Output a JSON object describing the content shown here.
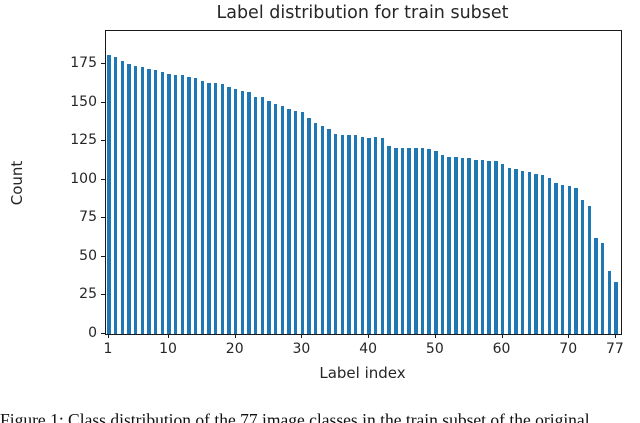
{
  "figure": {
    "title": "Label distribution for train subset",
    "xlabel": "Label index",
    "ylabel": "Count",
    "caption": "Figure 1: Class distribution of the 77 image classes in the train subset of the original"
  },
  "chart_data": {
    "type": "bar",
    "title": "Label distribution for train subset",
    "xlabel": "Label index",
    "ylabel": "Count",
    "bar_color": "#1f77b4",
    "grid": false,
    "legend": "none",
    "xticks": [
      1,
      10,
      20,
      30,
      40,
      50,
      60,
      70,
      77
    ],
    "yticks": [
      0,
      25,
      50,
      75,
      100,
      125,
      150,
      175
    ],
    "xlim": [
      0.5,
      78.6
    ],
    "ylim": [
      0,
      196
    ],
    "categories": [
      1,
      2,
      3,
      4,
      5,
      6,
      7,
      8,
      9,
      10,
      11,
      12,
      13,
      14,
      15,
      16,
      17,
      18,
      19,
      20,
      21,
      22,
      23,
      24,
      25,
      26,
      27,
      28,
      29,
      30,
      31,
      32,
      33,
      34,
      35,
      36,
      37,
      38,
      39,
      40,
      41,
      42,
      43,
      44,
      45,
      46,
      47,
      48,
      49,
      50,
      51,
      52,
      53,
      54,
      55,
      56,
      57,
      58,
      59,
      60,
      61,
      62,
      63,
      64,
      65,
      66,
      67,
      68,
      69,
      70,
      71,
      72,
      73,
      74,
      75,
      76,
      77
    ],
    "values": [
      181,
      180,
      177,
      175,
      174,
      173,
      172,
      171,
      170,
      169,
      168,
      168,
      167,
      166,
      164,
      163,
      163,
      162,
      160,
      159,
      158,
      157,
      154,
      154,
      151,
      149,
      148,
      146,
      145,
      144,
      140,
      137,
      135,
      133,
      130,
      129,
      129,
      129,
      128,
      127,
      128,
      127,
      122,
      121,
      121,
      121,
      121,
      121,
      120,
      119,
      116,
      115,
      115,
      114,
      114,
      113,
      113,
      112,
      112,
      110,
      108,
      107,
      106,
      105,
      104,
      103,
      101,
      98,
      97,
      96,
      95,
      87,
      83,
      62,
      59,
      41,
      34
    ]
  }
}
